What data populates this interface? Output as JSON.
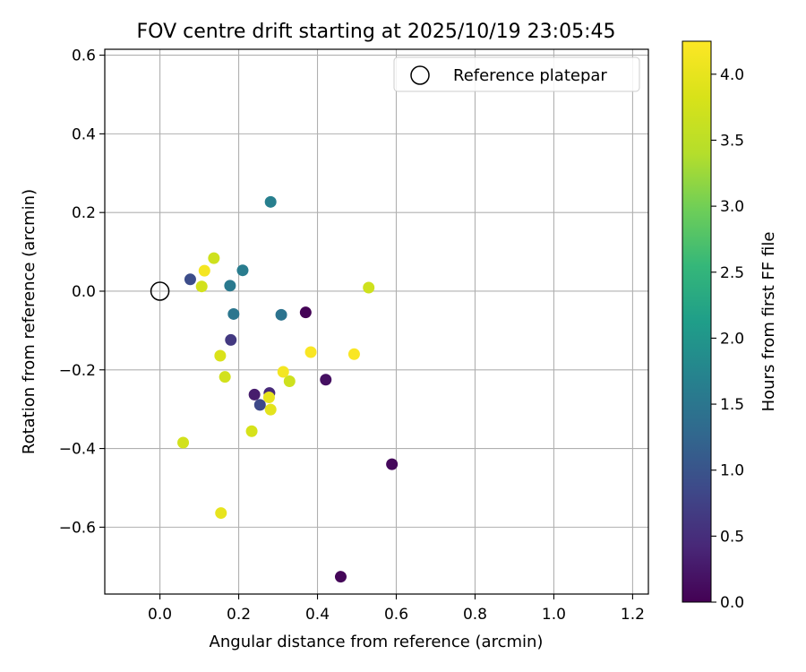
{
  "chart_data": {
    "type": "scatter",
    "title": "FOV centre drift starting at 2025/10/19 23:05:45",
    "xlabel": "Angular distance from reference (arcmin)",
    "ylabel": "Rotation from reference (arcmin)",
    "xlim": [
      -0.14,
      1.24
    ],
    "ylim": [
      -0.77,
      0.615
    ],
    "xticks": [
      0.0,
      0.2,
      0.4,
      0.6,
      0.8,
      1.0,
      1.2
    ],
    "xtick_labels": [
      "0.0",
      "0.2",
      "0.4",
      "0.6",
      "0.8",
      "1.0",
      "1.2"
    ],
    "yticks": [
      -0.6,
      -0.4,
      -0.2,
      0.0,
      0.2,
      0.4,
      0.6
    ],
    "ytick_labels": [
      "−0.6",
      "−0.4",
      "−0.2",
      "0.0",
      "0.2",
      "0.4",
      "0.6"
    ],
    "grid": true,
    "legend": {
      "position": "upper-right",
      "entries": [
        "Reference platepar"
      ]
    },
    "reference_point": {
      "x": 0.0,
      "y": 0.0,
      "label": "Reference platepar"
    },
    "colorbar": {
      "label": "Hours from first FF file",
      "colormap": "viridis",
      "range": [
        0.0,
        4.25
      ],
      "ticks": [
        0.0,
        0.5,
        1.0,
        1.5,
        2.0,
        2.5,
        3.0,
        3.5,
        4.0
      ],
      "tick_labels": [
        "0.0",
        "0.5",
        "1.0",
        "1.5",
        "2.0",
        "2.5",
        "3.0",
        "3.5",
        "4.0"
      ]
    },
    "points": [
      {
        "x": 0.37,
        "y": -0.054,
        "hours": 0.02
      },
      {
        "x": 0.459,
        "y": -0.726,
        "hours": 0.05
      },
      {
        "x": 0.589,
        "y": -0.44,
        "hours": 0.08
      },
      {
        "x": 0.421,
        "y": -0.225,
        "hours": 0.15
      },
      {
        "x": 0.24,
        "y": -0.263,
        "hours": 0.3
      },
      {
        "x": 0.278,
        "y": -0.259,
        "hours": 0.45
      },
      {
        "x": 0.18,
        "y": -0.124,
        "hours": 0.65
      },
      {
        "x": 0.254,
        "y": -0.289,
        "hours": 0.85
      },
      {
        "x": 0.077,
        "y": 0.03,
        "hours": 0.9
      },
      {
        "x": 0.308,
        "y": -0.06,
        "hours": 1.45
      },
      {
        "x": 0.187,
        "y": -0.058,
        "hours": 1.5
      },
      {
        "x": 0.178,
        "y": 0.014,
        "hours": 1.55
      },
      {
        "x": 0.21,
        "y": 0.053,
        "hours": 1.6
      },
      {
        "x": 0.281,
        "y": 0.227,
        "hours": 1.65
      },
      {
        "x": 0.137,
        "y": 0.084,
        "hours": 3.7
      },
      {
        "x": 0.106,
        "y": 0.012,
        "hours": 3.75
      },
      {
        "x": 0.53,
        "y": 0.009,
        "hours": 3.7
      },
      {
        "x": 0.153,
        "y": -0.164,
        "hours": 3.85
      },
      {
        "x": 0.165,
        "y": -0.218,
        "hours": 3.75
      },
      {
        "x": 0.329,
        "y": -0.229,
        "hours": 3.7
      },
      {
        "x": 0.059,
        "y": -0.385,
        "hours": 3.75
      },
      {
        "x": 0.233,
        "y": -0.356,
        "hours": 3.8
      },
      {
        "x": 0.277,
        "y": -0.27,
        "hours": 4.0
      },
      {
        "x": 0.281,
        "y": -0.301,
        "hours": 3.95
      },
      {
        "x": 0.155,
        "y": -0.564,
        "hours": 4.0
      },
      {
        "x": 0.113,
        "y": 0.052,
        "hours": 4.15
      },
      {
        "x": 0.383,
        "y": -0.155,
        "hours": 4.2
      },
      {
        "x": 0.493,
        "y": -0.16,
        "hours": 4.2
      },
      {
        "x": 0.313,
        "y": -0.205,
        "hours": 4.15
      }
    ]
  }
}
